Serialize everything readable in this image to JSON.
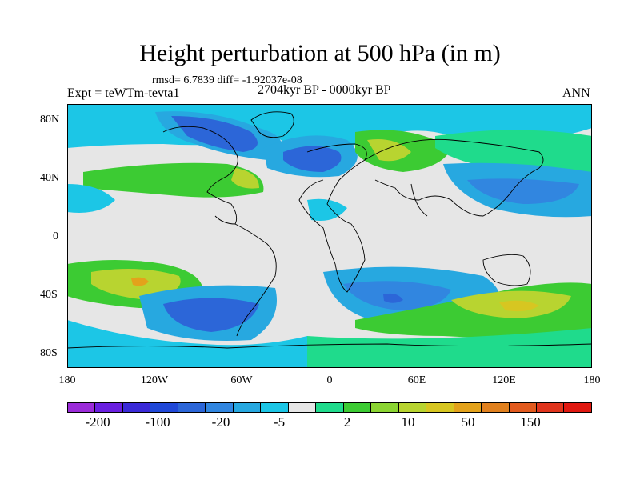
{
  "title": "Height perturbation at 500 hPa (in m)",
  "stats": "rmsd= 6.7839 diff= -1.92037e-08",
  "experiment": "Expt = teWTm-tevta1",
  "period": "2704kyr BP - 0000kyr BP",
  "season": "ANN",
  "y_ticks": [
    "80N",
    "40N",
    "0",
    "40S",
    "80S"
  ],
  "x_ticks": [
    "180",
    "120W",
    "60W",
    "0",
    "60E",
    "120E",
    "180"
  ],
  "colorbar": {
    "colors": [
      "#9b2bd9",
      "#6a1fe0",
      "#3a2ad8",
      "#2048d8",
      "#2c66d8",
      "#3186e0",
      "#27a8e0",
      "#1cc6e6",
      "#e6e6e6",
      "#1fdb8c",
      "#3ccb33",
      "#8bd532",
      "#b8d430",
      "#d7c621",
      "#e3a21b",
      "#e0801e",
      "#e25a1e",
      "#e0341c",
      "#e01810"
    ],
    "labels": [
      "-200",
      "-100",
      "-20",
      "-5",
      "2",
      "10",
      "50",
      "150"
    ]
  },
  "colors": {
    "neutral": "#e6e6e6",
    "cyan": "#1cc6e6",
    "sky": "#27a8e0",
    "blue": "#3186e0",
    "deep_blue": "#2c66d8",
    "teal": "#1fdb8c",
    "green": "#3ccb33",
    "light_green": "#8bd532",
    "yellow_green": "#b8d430",
    "yellow": "#d7c621",
    "orange": "#e3a21b"
  }
}
